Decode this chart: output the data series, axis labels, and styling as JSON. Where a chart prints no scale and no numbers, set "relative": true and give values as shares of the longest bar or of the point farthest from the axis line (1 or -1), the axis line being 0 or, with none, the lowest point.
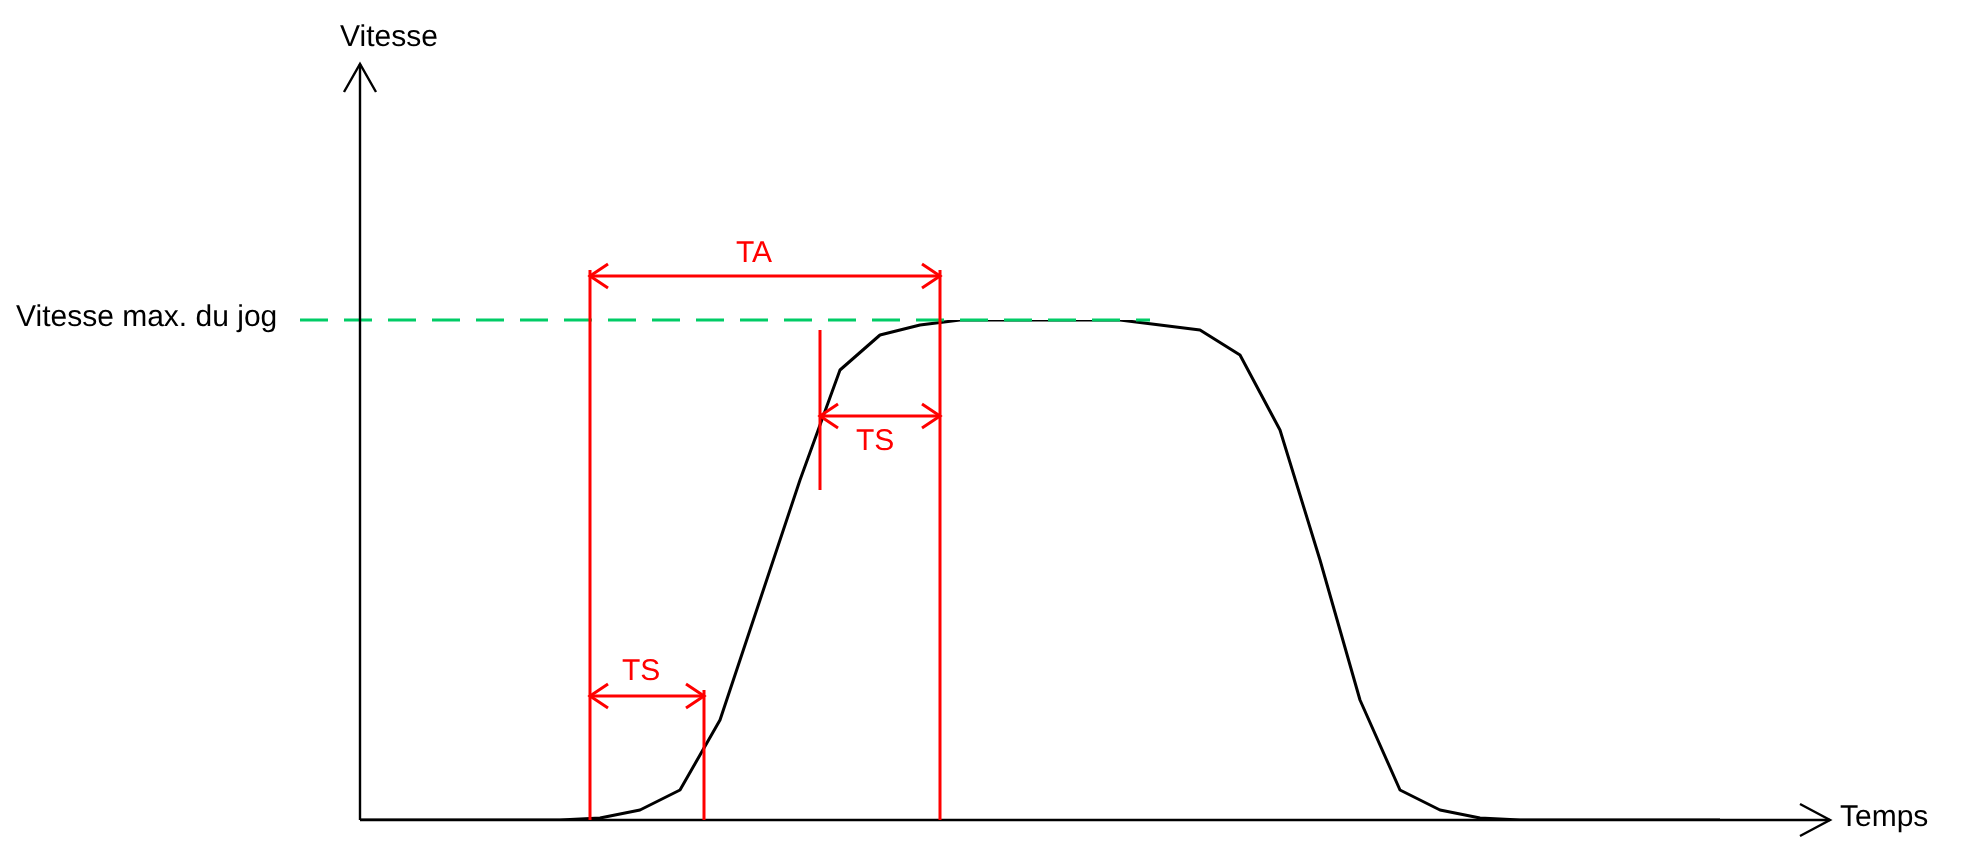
{
  "chart_data": {
    "type": "line",
    "relative": true,
    "categories": [
      null,
      null,
      null,
      null,
      null,
      null,
      null,
      null,
      null,
      null,
      null,
      null,
      null,
      null,
      null,
      null,
      null,
      null,
      null,
      null,
      null,
      null,
      null,
      null,
      null,
      null,
      null,
      null,
      null,
      null,
      null,
      null,
      null,
      null,
      null
    ],
    "series": [
      {
        "color": "#000000",
        "values": [
          0,
          0,
          0,
          0,
          0,
          0,
          0.004,
          0.02,
          0.06,
          0.2,
          0.44,
          0.68,
          0.9,
          0.97,
          0.99,
          1,
          1,
          1,
          1,
          1,
          0.99,
          0.98,
          0.93,
          0.78,
          0.52,
          0.24,
          0.06,
          0.02,
          0.004,
          0,
          0,
          0,
          0,
          0,
          0
        ]
      }
    ],
    "xlabel": "Temps",
    "ref_lines": [
      {
        "axis": "y",
        "value": 1,
        "label": "Vitesse max. du jog",
        "color": "#00cc66",
        "line_style": "dashed"
      }
    ],
    "annotations": [
      "TA",
      "TS",
      "TS",
      "Vitesse"
    ],
    "marker": "none",
    "legend": false,
    "tick_labels": false,
    "grid": false
  }
}
